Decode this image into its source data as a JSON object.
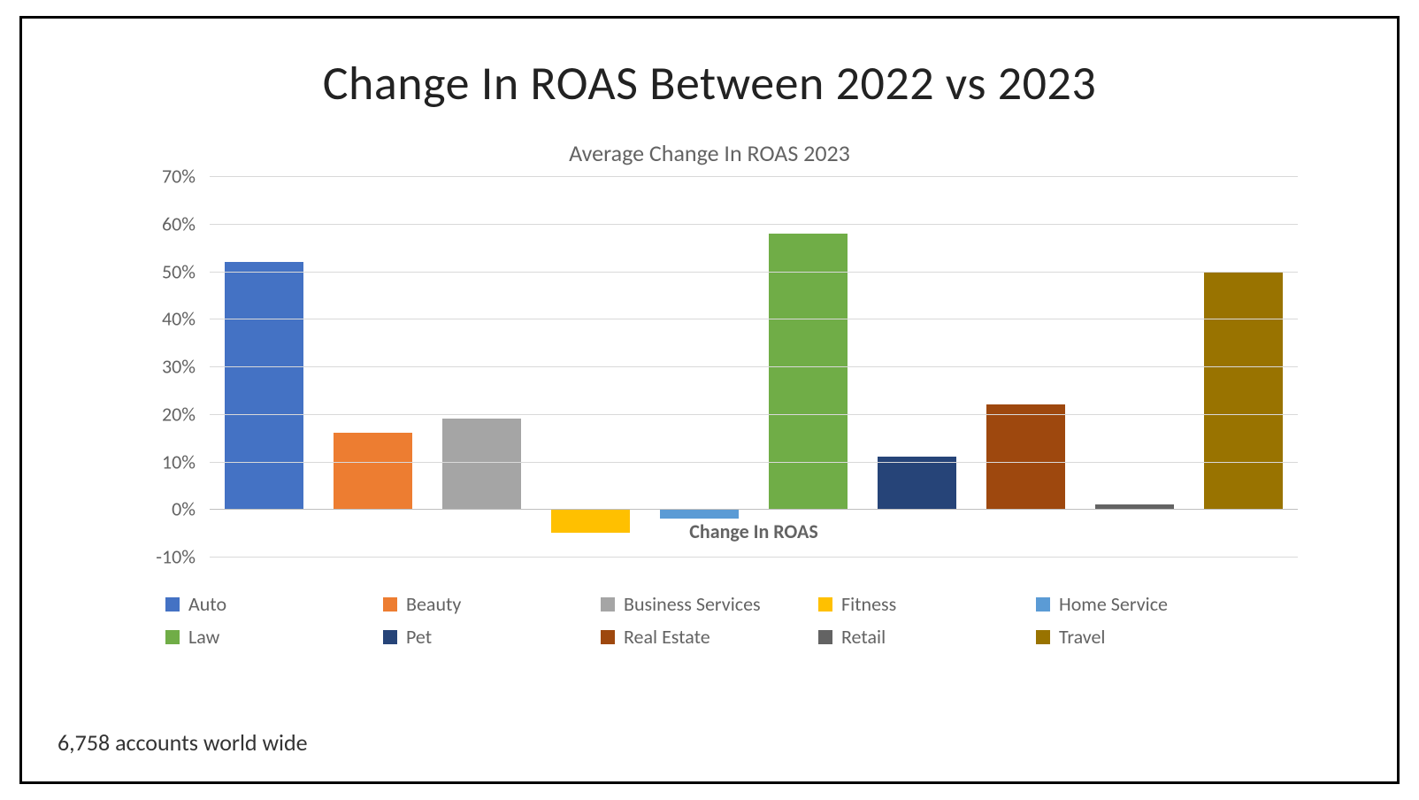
{
  "title": "Change In ROAS Between 2022 vs 2023",
  "subtitle": "Average Change In ROAS 2023",
  "x_axis_label": "Change In ROAS",
  "footnote": "6,758 accounts world wide",
  "chart": {
    "type": "bar",
    "y_min": -10,
    "y_max": 70,
    "y_tick_step": 10,
    "y_tick_format": "percent",
    "y_label_fontsize": 22,
    "y_label_color": "#636363",
    "grid_color": "#d9d9d9",
    "zero_line_color": "#bfbfbf",
    "background_color": "#ffffff",
    "bar_slot_count": 10,
    "bar_width_ratio": 0.72,
    "y_ticks": [
      {
        "value": 70,
        "label": "70%"
      },
      {
        "value": 60,
        "label": "60%"
      },
      {
        "value": 50,
        "label": "50%"
      },
      {
        "value": 40,
        "label": "40%"
      },
      {
        "value": 30,
        "label": "30%"
      },
      {
        "value": 20,
        "label": "20%"
      },
      {
        "value": 10,
        "label": "10%"
      },
      {
        "value": 0,
        "label": "0%"
      },
      {
        "value": -10,
        "label": "-10%"
      }
    ],
    "series": [
      {
        "name": "Auto",
        "value": 52,
        "color": "#4472c4"
      },
      {
        "name": "Beauty",
        "value": 16,
        "color": "#ed7d31"
      },
      {
        "name": "Business Services",
        "value": 19,
        "color": "#a5a5a5"
      },
      {
        "name": "Fitness",
        "value": -5,
        "color": "#ffc000"
      },
      {
        "name": "Home Service",
        "value": -2,
        "color": "#5b9bd5"
      },
      {
        "name": "Law",
        "value": 58,
        "color": "#70ad47"
      },
      {
        "name": "Pet",
        "value": 11,
        "color": "#264478"
      },
      {
        "name": "Real Estate",
        "value": 22,
        "color": "#9e480e"
      },
      {
        "name": "Retail",
        "value": 1,
        "color": "#636363"
      },
      {
        "name": "Travel",
        "value": 50,
        "color": "#997300"
      }
    ]
  },
  "legend_layout": {
    "rows": 2,
    "cols": 5
  },
  "typography": {
    "title_fontsize": 54,
    "title_color": "#222222",
    "subtitle_fontsize": 26,
    "subtitle_color": "#636363",
    "legend_fontsize": 22,
    "legend_color": "#636363",
    "footnote_fontsize": 26,
    "footnote_color": "#333333",
    "xaxis_label_fontsize": 22,
    "xaxis_label_weight": "600"
  }
}
